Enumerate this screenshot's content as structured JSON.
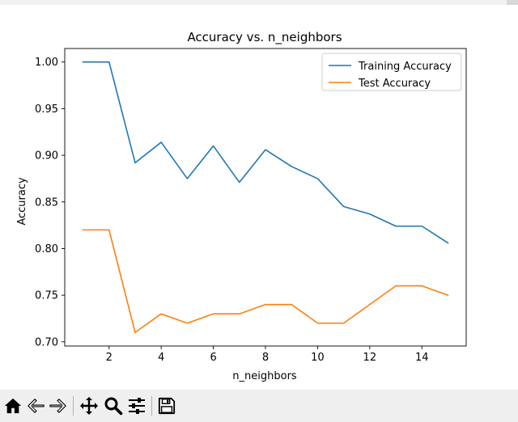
{
  "window": {
    "toolbar": {
      "buttons": [
        {
          "id": "home",
          "icon": "home-icon",
          "tooltip": "Reset original view"
        },
        {
          "id": "back",
          "icon": "back-arrow-icon",
          "tooltip": "Back to previous view"
        },
        {
          "id": "forward",
          "icon": "forward-arrow-icon",
          "tooltip": "Forward to next view"
        },
        {
          "id": "pan",
          "icon": "move-icon",
          "tooltip": "Pan axes"
        },
        {
          "id": "zoom",
          "icon": "magnifier-icon",
          "tooltip": "Zoom to rectangle"
        },
        {
          "id": "configure",
          "icon": "sliders-icon",
          "tooltip": "Configure subplots"
        },
        {
          "id": "save",
          "icon": "floppy-disk-icon",
          "tooltip": "Save the figure"
        }
      ]
    }
  },
  "chart_data": {
    "type": "line",
    "title": "Accuracy vs. n_neighbors",
    "xlabel": "n_neighbors",
    "ylabel": "Accuracy",
    "xlim": [
      0.3,
      15.7
    ],
    "ylim": [
      0.6955,
      1.0145
    ],
    "xticks": [
      2,
      4,
      6,
      8,
      10,
      12,
      14
    ],
    "yticks": [
      0.7,
      0.75,
      0.8,
      0.85,
      0.9,
      0.95,
      1.0
    ],
    "ytick_labels": [
      "0.70",
      "0.75",
      "0.80",
      "0.85",
      "0.90",
      "0.95",
      "1.00"
    ],
    "grid": false,
    "legend_position": "top-right",
    "x": [
      1,
      2,
      3,
      4,
      5,
      6,
      7,
      8,
      9,
      10,
      11,
      12,
      13,
      14,
      15
    ],
    "series": [
      {
        "name": "Training Accuracy",
        "color": "#1f77b4",
        "values": [
          1.0,
          1.0,
          0.892,
          0.914,
          0.875,
          0.91,
          0.871,
          0.906,
          0.888,
          0.875,
          0.845,
          0.837,
          0.824,
          0.824,
          0.806
        ]
      },
      {
        "name": "Test Accuracy",
        "color": "#ff7f0e",
        "values": [
          0.82,
          0.82,
          0.71,
          0.73,
          0.72,
          0.73,
          0.73,
          0.74,
          0.74,
          0.72,
          0.72,
          0.74,
          0.76,
          0.76,
          0.75
        ]
      }
    ]
  }
}
